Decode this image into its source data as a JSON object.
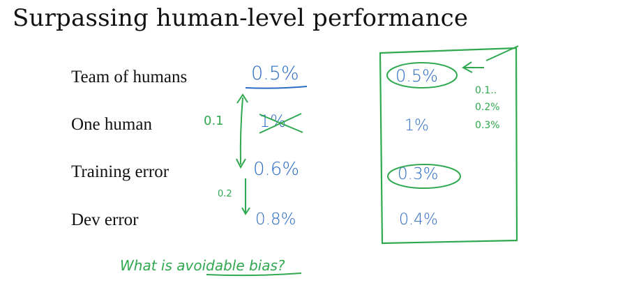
{
  "title": "Surpassing human-level performance",
  "rows": [
    {
      "label": "Team of humans",
      "value": "0.5%"
    },
    {
      "label": "One human",
      "value": "1%",
      "struck": true
    },
    {
      "label": "Training error",
      "value": "0.6%"
    },
    {
      "label": "Dev error",
      "value": "0.8%"
    }
  ],
  "gaps": {
    "human_to_train": "0.1",
    "train_to_dev": "0.2"
  },
  "question": "What is avoidable bias?",
  "scenario_b": {
    "team": "0.5%",
    "one_human": "1%",
    "training": "0.3%",
    "dev": "0.4%",
    "side_notes": [
      "0.1..",
      "0.2%",
      "0.3%"
    ]
  },
  "colors": {
    "ink_blue": "#2b6cc4",
    "ink_green": "#2fa84f"
  }
}
